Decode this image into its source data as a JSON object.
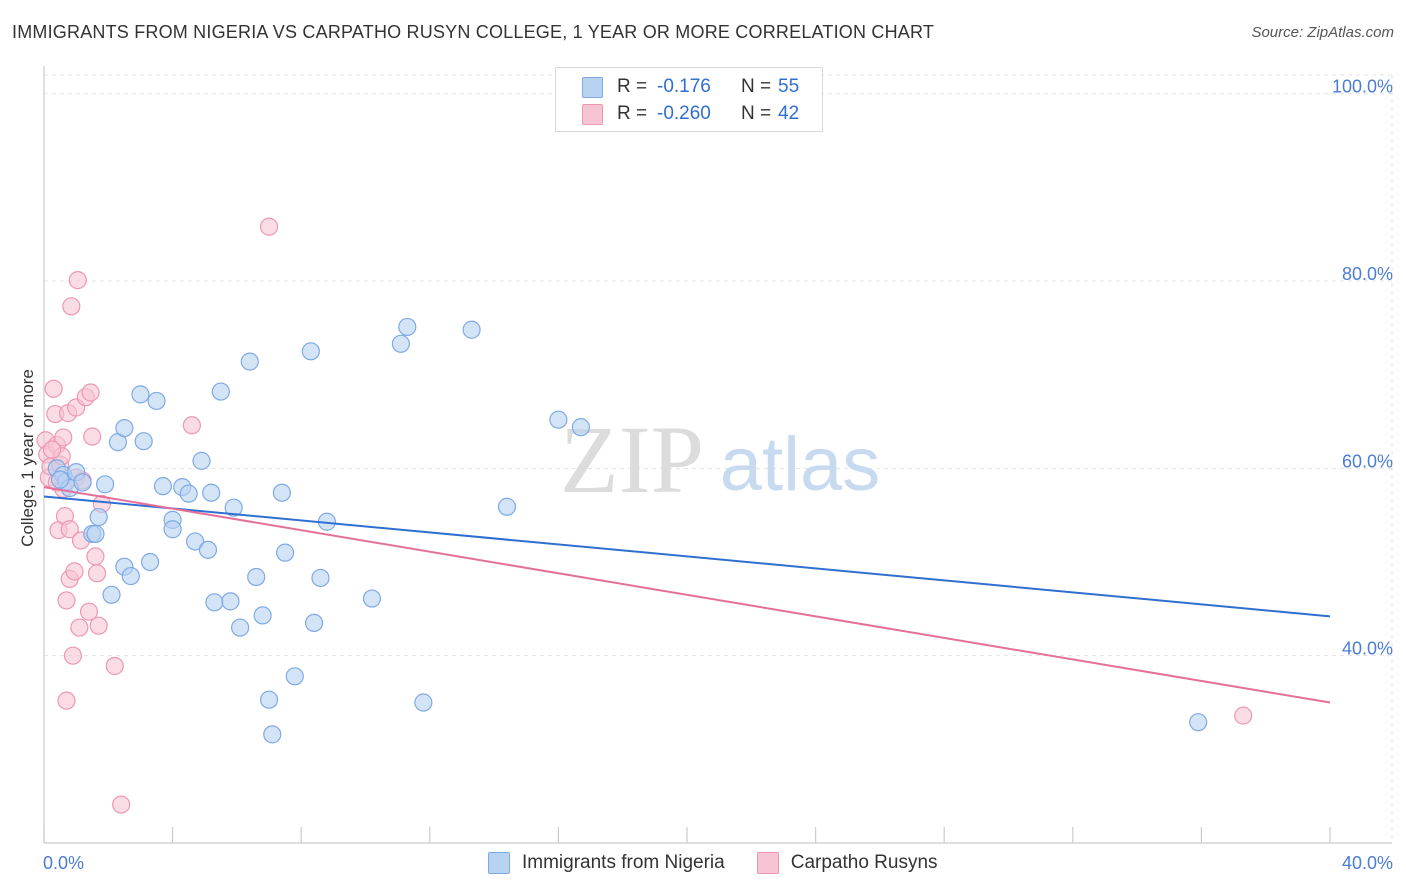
{
  "header": {
    "title": "IMMIGRANTS FROM NIGERIA VS CARPATHO RUSYN COLLEGE, 1 YEAR OR MORE CORRELATION CHART",
    "source": "Source: ZipAtlas.com"
  },
  "watermark": {
    "zip": "ZIP",
    "atlas": "atlas"
  },
  "legend": {
    "r_label": "R =",
    "n_label": "N =",
    "series": [
      {
        "r": "-0.176",
        "n": "55"
      },
      {
        "r": "-0.260",
        "n": "42"
      }
    ]
  },
  "colors": {
    "blue_fill": "#b8d2f2",
    "blue_stroke": "#7eaae4",
    "blue_line": "#2f6fd0",
    "pink_fill": "#f6c4d3",
    "pink_stroke": "#ec98b4",
    "pink_line": "#e4709a",
    "grid": "#e3e3e3",
    "tick_text": "#4a7dd4"
  },
  "chart_data": {
    "type": "scatter",
    "title": "IMMIGRANTS FROM NIGERIA VS CARPATHO RUSYN COLLEGE, 1 YEAR OR MORE CORRELATION CHART",
    "xlabel": "",
    "ylabel": "College, 1 year or more",
    "xlim": [
      0,
      40
    ],
    "ylim": [
      20,
      102
    ],
    "x_tick_labels": [
      "0.0%",
      "40.0%"
    ],
    "y_ticks": [
      40,
      60,
      80,
      100
    ],
    "y_tick_labels": [
      "40.0%",
      "60.0%",
      "80.0%",
      "100.0%"
    ],
    "grid": true,
    "series": [
      {
        "name": "Immigrants from Nigeria",
        "trend": [
          [
            0,
            57.0
          ],
          [
            40,
            44.2
          ]
        ],
        "points": [
          [
            0.4,
            60.0
          ],
          [
            0.6,
            59.3
          ],
          [
            0.7,
            58.6
          ],
          [
            0.8,
            57.9
          ],
          [
            1.0,
            59.6
          ],
          [
            1.2,
            58.5
          ],
          [
            1.5,
            53.0
          ],
          [
            1.6,
            53.0
          ],
          [
            1.7,
            54.8
          ],
          [
            1.9,
            58.3
          ],
          [
            2.1,
            46.5
          ],
          [
            2.3,
            62.8
          ],
          [
            2.5,
            64.3
          ],
          [
            2.5,
            49.5
          ],
          [
            2.7,
            48.5
          ],
          [
            3.0,
            67.9
          ],
          [
            3.1,
            62.9
          ],
          [
            3.3,
            50.0
          ],
          [
            3.5,
            67.2
          ],
          [
            3.7,
            58.1
          ],
          [
            4.0,
            54.5
          ],
          [
            4.0,
            53.5
          ],
          [
            4.3,
            58.0
          ],
          [
            4.5,
            57.3
          ],
          [
            4.7,
            52.2
          ],
          [
            4.9,
            60.8
          ],
          [
            5.1,
            51.3
          ],
          [
            5.2,
            57.4
          ],
          [
            5.3,
            45.7
          ],
          [
            5.5,
            68.2
          ],
          [
            5.8,
            45.8
          ],
          [
            5.9,
            55.8
          ],
          [
            6.1,
            43.0
          ],
          [
            6.4,
            71.4
          ],
          [
            6.6,
            48.4
          ],
          [
            6.8,
            44.3
          ],
          [
            7.0,
            35.3
          ],
          [
            7.1,
            31.6
          ],
          [
            7.4,
            57.4
          ],
          [
            7.5,
            51.0
          ],
          [
            7.8,
            37.8
          ],
          [
            8.3,
            72.5
          ],
          [
            8.4,
            43.5
          ],
          [
            8.6,
            48.3
          ],
          [
            8.8,
            54.3
          ],
          [
            10.2,
            46.1
          ],
          [
            11.1,
            73.3
          ],
          [
            11.3,
            75.1
          ],
          [
            11.8,
            35.0
          ],
          [
            13.3,
            74.8
          ],
          [
            14.4,
            55.9
          ],
          [
            16.0,
            65.2
          ],
          [
            16.7,
            64.4
          ],
          [
            35.9,
            32.9
          ],
          [
            0.5,
            58.8
          ]
        ]
      },
      {
        "name": "Carpatho Rusyns",
        "trend": [
          [
            0,
            58.0
          ],
          [
            40,
            35.0
          ]
        ],
        "points": [
          [
            0.05,
            63.0
          ],
          [
            0.1,
            61.5
          ],
          [
            0.15,
            59.0
          ],
          [
            0.2,
            60.2
          ],
          [
            0.3,
            68.5
          ],
          [
            0.35,
            65.8
          ],
          [
            0.4,
            62.5
          ],
          [
            0.4,
            58.5
          ],
          [
            0.45,
            53.4
          ],
          [
            0.5,
            60.4
          ],
          [
            0.55,
            61.3
          ],
          [
            0.6,
            63.3
          ],
          [
            0.65,
            54.9
          ],
          [
            0.7,
            45.9
          ],
          [
            0.7,
            35.2
          ],
          [
            0.75,
            65.9
          ],
          [
            0.8,
            53.5
          ],
          [
            0.8,
            48.2
          ],
          [
            0.85,
            77.3
          ],
          [
            0.9,
            40.0
          ],
          [
            0.95,
            49.0
          ],
          [
            1.0,
            66.5
          ],
          [
            1.0,
            59.0
          ],
          [
            1.05,
            80.1
          ],
          [
            1.1,
            43.0
          ],
          [
            1.15,
            52.3
          ],
          [
            1.2,
            58.7
          ],
          [
            1.3,
            67.6
          ],
          [
            1.4,
            44.7
          ],
          [
            1.45,
            68.1
          ],
          [
            1.5,
            63.4
          ],
          [
            1.6,
            50.6
          ],
          [
            1.65,
            48.8
          ],
          [
            1.7,
            43.2
          ],
          [
            1.8,
            56.2
          ],
          [
            2.2,
            38.9
          ],
          [
            2.4,
            24.1
          ],
          [
            4.6,
            64.6
          ],
          [
            7.0,
            85.8
          ],
          [
            37.3,
            33.6
          ],
          [
            0.25,
            62.0
          ],
          [
            0.6,
            57.8
          ]
        ]
      }
    ]
  },
  "bottom_legend": [
    "Immigrants from Nigeria",
    "Carpatho Rusyns"
  ]
}
